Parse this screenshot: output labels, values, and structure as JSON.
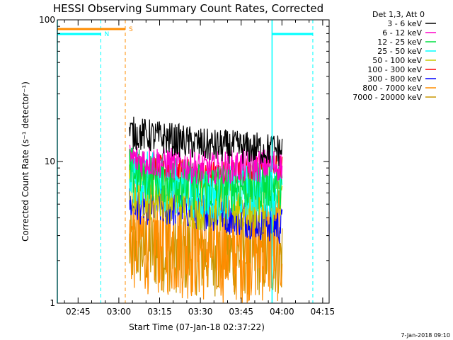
{
  "chart_data": {
    "type": "line",
    "title": "HESSI Observing Summary Count Rates, Corrected",
    "xlabel": "Start Time (07-Jan-18 02:37:22)",
    "ylabel": "Corrected Count Rate (s⁻¹ detector⁻¹)",
    "yscale": "log",
    "ylim": [
      1,
      100
    ],
    "xlim_minutes_from_start": [
      0,
      100
    ],
    "x_ticks": [
      {
        "label": "02:45",
        "minutes": 7.63
      },
      {
        "label": "03:00",
        "minutes": 22.63
      },
      {
        "label": "03:15",
        "minutes": 37.63
      },
      {
        "label": "03:30",
        "minutes": 52.63
      },
      {
        "label": "03:45",
        "minutes": 67.63
      },
      {
        "label": "04:00",
        "minutes": 82.63
      },
      {
        "label": "04:15",
        "minutes": 97.63
      }
    ],
    "y_ticks": [
      {
        "label": "1",
        "value": 1
      },
      {
        "label": "10",
        "value": 10
      },
      {
        "label": "100",
        "value": 100
      }
    ],
    "legend": {
      "position": "top-right",
      "header": "Det 1,3, Att 0",
      "entries": [
        {
          "label": "3 - 6 keV",
          "color": "#000000"
        },
        {
          "label": "6 - 12 keV",
          "color": "#ff00c8"
        },
        {
          "label": "12 - 25 keV",
          "color": "#00e040"
        },
        {
          "label": "25 - 50 keV",
          "color": "#00ffff"
        },
        {
          "label": "50 - 100 keV",
          "color": "#c8c800"
        },
        {
          "label": "100 - 300 keV",
          "color": "#ff0000"
        },
        {
          "label": "300 - 800 keV",
          "color": "#0000ff"
        },
        {
          "label": "800 - 7000 keV",
          "color": "#ff8c00"
        },
        {
          "label": "7000 - 20000 keV",
          "color": "#c89600"
        }
      ]
    },
    "series": [
      {
        "name": "3 - 6 keV",
        "color": "#000000",
        "t_range": [
          26.5,
          82.7
        ],
        "level_start": 16,
        "level_mid": 13,
        "level_end": 12,
        "spread": 0.12
      },
      {
        "name": "6 - 12 keV",
        "color": "#ff00c8",
        "t_range": [
          26.5,
          82.7
        ],
        "level_start": 10.5,
        "level_mid": 9,
        "level_end": 9.5,
        "spread": 0.12
      },
      {
        "name": "12 - 25 keV",
        "color": "#00e040",
        "t_range": [
          26.5,
          82.7
        ],
        "level_start": 8.5,
        "level_mid": 6.5,
        "level_end": 7,
        "spread": 0.18
      },
      {
        "name": "25 - 50 keV",
        "color": "#00ffff",
        "t_range": [
          26.5,
          82.7
        ],
        "level_start": 8,
        "level_mid": 6,
        "level_end": 6.5,
        "spread": 0.2
      },
      {
        "name": "50 - 100 keV",
        "color": "#c8c800",
        "t_range": [
          26.5,
          82.7
        ],
        "level_start": 6.5,
        "level_mid": 5,
        "level_end": 5,
        "spread": 0.2
      },
      {
        "name": "100 - 300 keV",
        "color": "#ff0000",
        "t_range": [
          26.5,
          82.7
        ],
        "level_start": 9.5,
        "level_mid": 8,
        "level_end": 9,
        "spread": 0.1
      },
      {
        "name": "300 - 800 keV",
        "color": "#0000ff",
        "t_range": [
          26.5,
          82.7
        ],
        "level_start": 5,
        "level_mid": 4.5,
        "level_end": 3.5,
        "spread": 0.14
      },
      {
        "name": "800 - 7000 keV",
        "color": "#ff8c00",
        "t_range": [
          26.5,
          82.7
        ],
        "level_start": 3,
        "level_mid": 2.5,
        "level_end": 2.5,
        "spread": 0.4
      },
      {
        "name": "7000 - 20000 keV",
        "color": "#c89600",
        "t_range": [
          26.5,
          82.7
        ],
        "level_start": 2.5,
        "level_mid": 2.2,
        "level_end": 2.2,
        "spread": 0.3
      }
    ],
    "annotations": {
      "night_label": "N",
      "saa_label": "S",
      "night_intervals": [
        [
          0,
          16
        ],
        [
          79,
          94
        ]
      ],
      "night_color": "#00ffff",
      "saa_intervals": [
        [
          0,
          25
        ]
      ],
      "saa_color": "#ff8c00",
      "vertical_dashed_lines": [
        {
          "minutes": 16,
          "color": "#00ffff"
        },
        {
          "minutes": 25,
          "color": "#ff8c00"
        },
        {
          "minutes": 94,
          "color": "#00ffff"
        }
      ],
      "vertical_solid_lines": [
        {
          "minutes": 0,
          "color": "#00ffff"
        },
        {
          "minutes": 79,
          "color": "#00ffff"
        }
      ]
    },
    "footer_timestamp": "7-Jan-2018 09:10"
  }
}
